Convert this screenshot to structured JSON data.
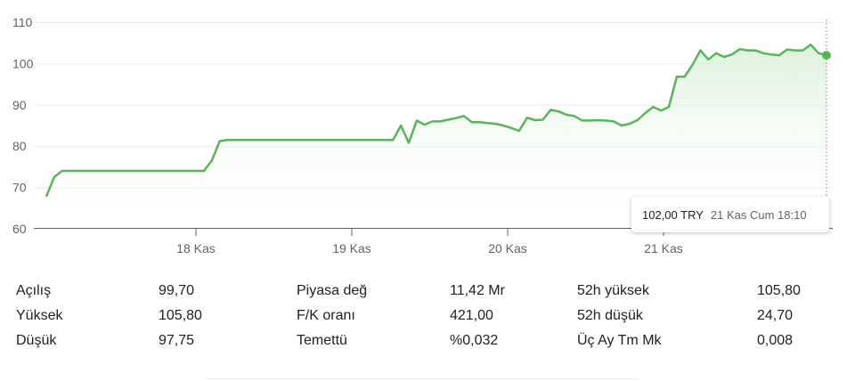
{
  "chart_data": {
    "type": "area",
    "y_ticks": [
      "60",
      "70",
      "80",
      "90",
      "100",
      "110"
    ],
    "ylim": [
      60,
      110
    ],
    "x_ticks": [
      "18 Kas",
      "19 Kas",
      "20 Kas",
      "21 Kas"
    ],
    "series": [
      {
        "values": [
          67.8,
          72.5,
          74.0,
          74.0,
          74.0,
          74.0,
          74.0,
          74.0,
          74.0,
          74.0,
          74.0,
          74.0,
          74.0,
          74.0,
          74.0,
          74.0,
          74.0,
          74.0,
          74.0,
          74.0,
          74.0,
          76.5,
          81.2,
          81.5,
          81.5,
          81.5,
          81.5,
          81.5,
          81.5,
          81.5,
          81.5,
          81.5,
          81.5,
          81.5,
          81.5,
          81.5,
          81.5,
          81.5,
          81.5,
          81.5,
          81.5,
          81.5,
          81.5,
          81.5,
          81.5,
          85.0,
          80.8,
          86.2,
          85.2,
          86.0,
          86.0,
          86.4,
          86.8,
          87.3,
          85.8,
          85.8,
          85.6,
          85.4,
          85.0,
          84.4,
          83.7,
          86.9,
          86.3,
          86.4,
          88.8,
          88.4,
          87.6,
          87.3,
          86.2,
          86.2,
          86.3,
          86.2,
          86.0,
          85.0,
          85.4,
          86.3,
          88.0,
          89.5,
          88.6,
          89.5,
          96.8,
          96.8,
          99.7,
          103.2,
          101.0,
          102.5,
          101.6,
          102.2,
          103.5,
          103.2,
          103.2,
          102.5,
          102.2,
          102.0,
          103.4,
          103.2,
          103.2,
          104.6,
          102.5,
          102.0
        ]
      }
    ],
    "colors": {
      "line": "#5bb35c",
      "fill": "#e6f4e6"
    }
  },
  "tooltip": {
    "value": "102,00 TRY",
    "time": "21 Kas Cum 18:10"
  },
  "stats": {
    "rows": [
      [
        {
          "label": "Açılış",
          "value": "99,70"
        },
        {
          "label": "Piyasa değ",
          "value": "11,42 Mr"
        },
        {
          "label": "52h yüksek",
          "value": "105,80"
        }
      ],
      [
        {
          "label": "Yüksek",
          "value": "105,80"
        },
        {
          "label": "F/K oranı",
          "value": "421,00"
        },
        {
          "label": "52h düşük",
          "value": "24,70"
        }
      ],
      [
        {
          "label": "Düşük",
          "value": "97,75"
        },
        {
          "label": "Temettü",
          "value": "%0,032"
        },
        {
          "label": "Üç Ay Tm Mk",
          "value": "0,008"
        }
      ]
    ]
  }
}
